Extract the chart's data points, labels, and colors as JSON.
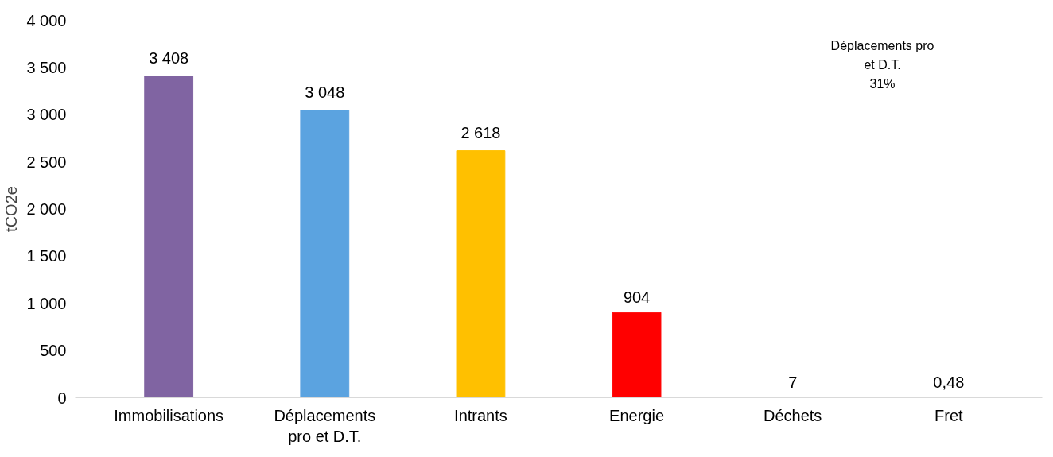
{
  "chart_data": {
    "type": "bar",
    "ylabel": "tCO2e",
    "categories": [
      "Immobilisations",
      "Déplacements pro et D.T.",
      "Intrants",
      "Energie",
      "Déchets",
      "Fret"
    ],
    "values": [
      3408,
      3048,
      2618,
      904,
      7,
      0.48
    ],
    "colors": [
      "#8064a2",
      "#5ba3e0",
      "#ffc000",
      "#ff0000",
      "#5ba3e0",
      "#ffc000"
    ],
    "value_labels": [
      "3 408",
      "3 048",
      "2 618",
      "904",
      "7",
      "0,48"
    ],
    "ylim": [
      0,
      4000
    ],
    "yticks": [
      0,
      {
        "value": 500,
        "label": "500"
      },
      {
        "value": 1000,
        "label": "1 000"
      },
      {
        "value": 1500,
        "label": "1 500"
      },
      {
        "value": 2000,
        "label": "2 000"
      },
      {
        "value": 2500,
        "label": "2 500"
      },
      {
        "value": 3000,
        "label": "3 000"
      },
      {
        "value": 3500,
        "label": "3 500"
      },
      {
        "value": 4000,
        "label": "4 000"
      }
    ],
    "annotations": [
      "Déplacements pro\net D.T.\n31%"
    ],
    "grid": false
  }
}
